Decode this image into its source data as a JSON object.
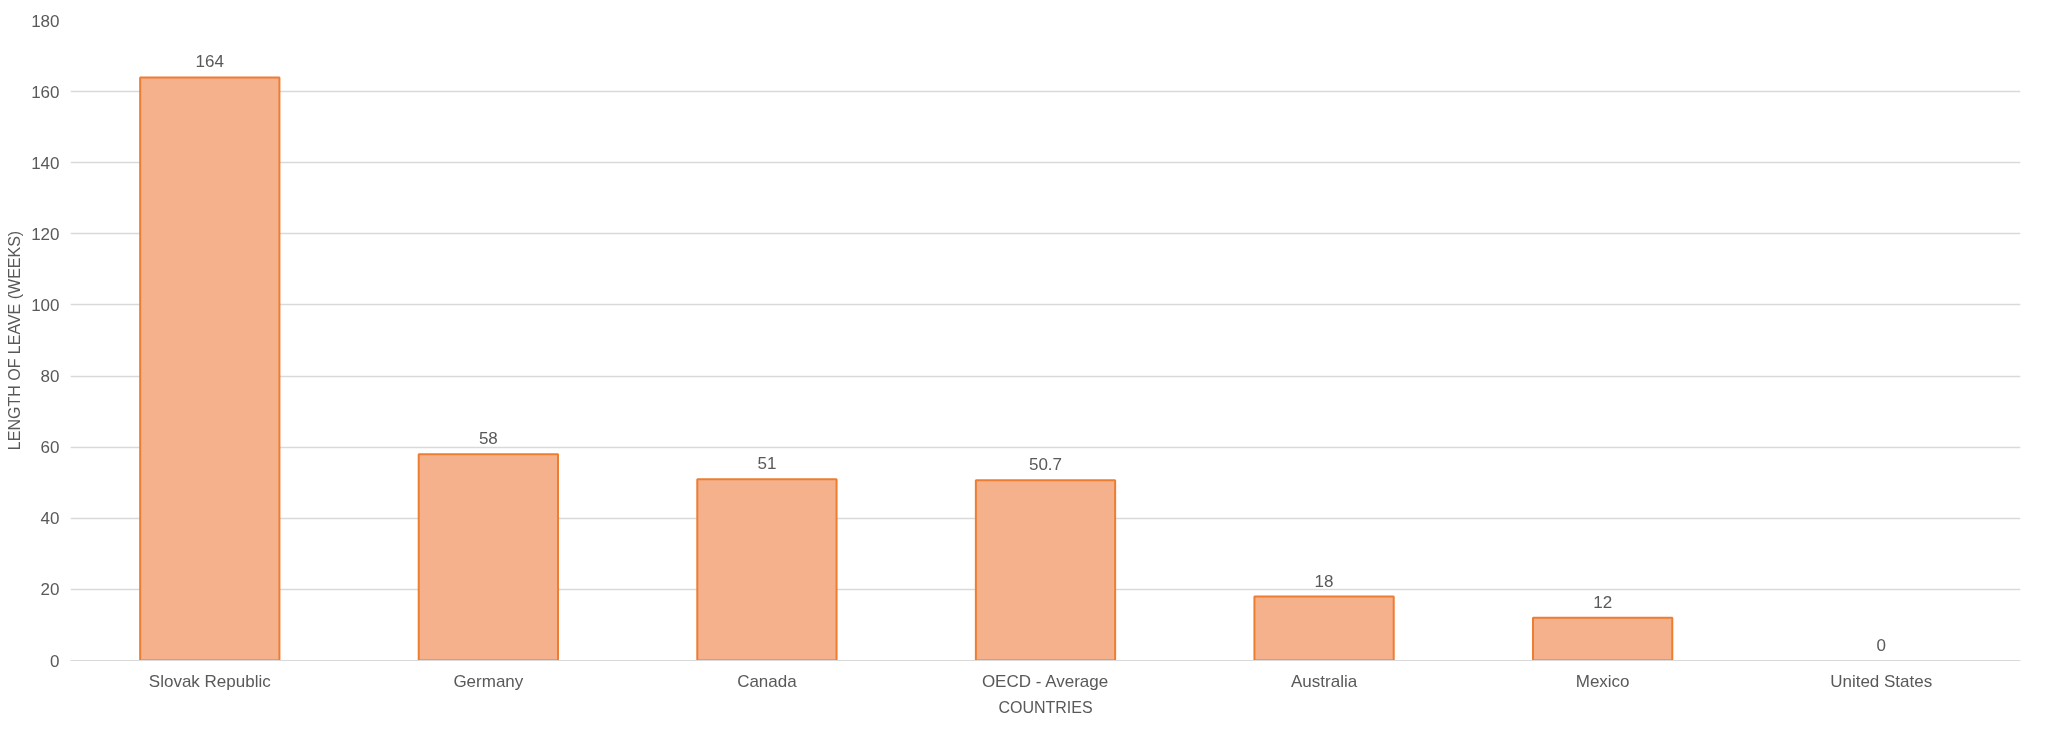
{
  "chart_data": {
    "type": "bar",
    "xlabel": "COUNTRIES",
    "ylabel": "LENGTH OF LEAVE (WEEKS)",
    "categories": [
      "Slovak Republic",
      "Germany",
      "Canada",
      "OECD - Average",
      "Australia",
      "Mexico",
      "United States"
    ],
    "values": [
      164,
      58,
      51,
      50.7,
      18,
      12,
      0
    ],
    "color": "#f5b08c",
    "ylim": [
      0,
      180
    ],
    "yticks": [
      0,
      20,
      40,
      60,
      80,
      100,
      120,
      140,
      160,
      180
    ],
    "grid": "y",
    "data_labels": true
  }
}
